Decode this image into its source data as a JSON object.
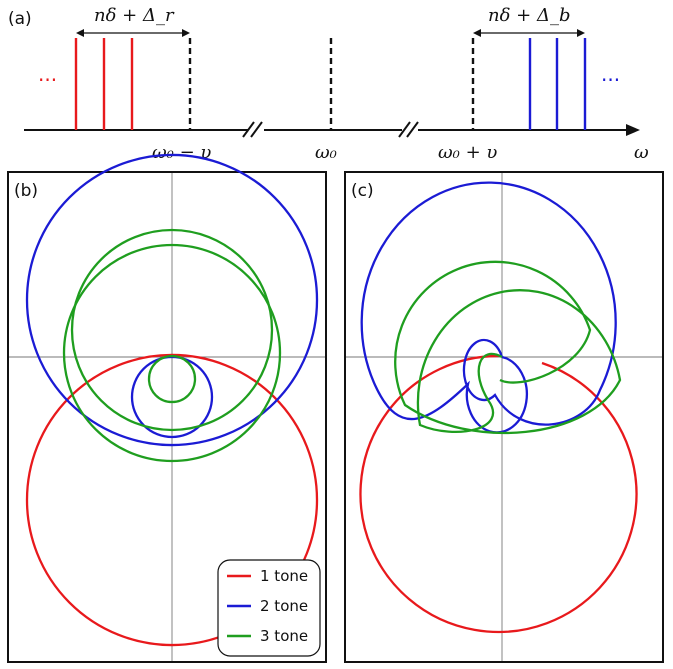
{
  "panel_a": {
    "label": "(a)",
    "bracket_left": "nδ + Δ_r",
    "bracket_right": "nδ + Δ_b",
    "dots_left": "···",
    "dots_right": "···",
    "tick_left": "ω₀ − υ",
    "tick_center": "ω₀",
    "tick_right": "ω₀ + υ",
    "axis_label": "ω"
  },
  "panel_b": {
    "label": "(b)"
  },
  "panel_c": {
    "label": "(c)"
  },
  "legend": [
    {
      "label": "1 tone",
      "color": "#e8191c"
    },
    {
      "label": "2 tone",
      "color": "#1b1bd4"
    },
    {
      "label": "3 tone",
      "color": "#1f9e1f"
    }
  ],
  "colors": {
    "red": "#e8191c",
    "blue": "#1b1bd4",
    "green": "#1f9e1f",
    "dashed": "#111111"
  }
}
